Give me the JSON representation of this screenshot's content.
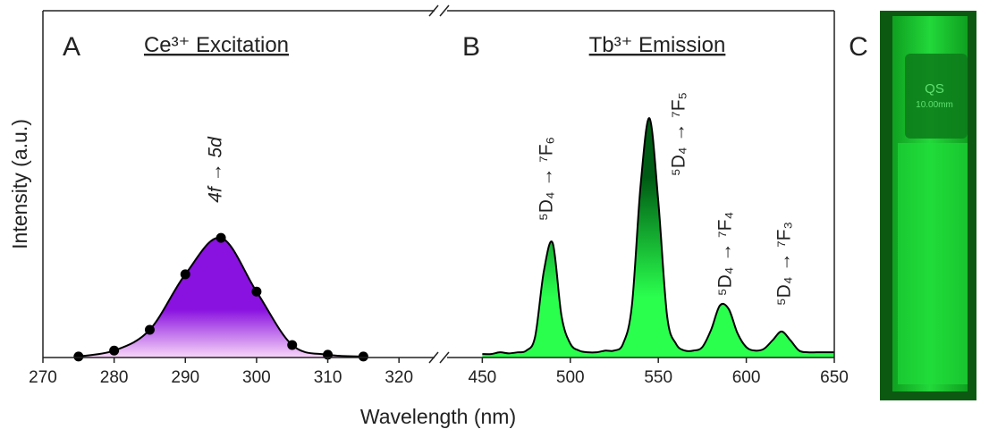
{
  "chart_data": [
    {
      "type": "line",
      "panel": "A",
      "title": "Ce³⁺ Excitation",
      "annotation": "4f → 5d",
      "x_label": "Wavelength (nm)",
      "y_label": "Intensity (a.u.)",
      "x": [
        275,
        280,
        285,
        290,
        295,
        300,
        305,
        310,
        315
      ],
      "values": [
        0.003,
        0.02,
        0.08,
        0.24,
        0.345,
        0.19,
        0.036,
        0.008,
        0.003
      ],
      "markers": true,
      "color": "#000000",
      "fill": [
        "#8a12e0",
        "#f8d6f8"
      ],
      "xlim": [
        270,
        325
      ],
      "xticks": [
        270,
        280,
        290,
        300,
        310,
        320
      ],
      "ylim": [
        0,
        1
      ]
    },
    {
      "type": "area",
      "panel": "B",
      "title": "Tb³⁺ Emission",
      "annotations": [
        "⁵D₄ → ⁷F₆",
        "⁵D₄ → ⁷F₅",
        "⁵D₄ → ⁷F₄",
        "⁵D₄ → ⁷F₃"
      ],
      "x": [
        450,
        455,
        460,
        465,
        470,
        475,
        480,
        485,
        490,
        495,
        500,
        505,
        510,
        515,
        520,
        525,
        530,
        535,
        540,
        545,
        550,
        555,
        560,
        565,
        570,
        575,
        580,
        585,
        590,
        595,
        600,
        605,
        610,
        615,
        620,
        625,
        630,
        635,
        640,
        645,
        650
      ],
      "values": [
        0.01,
        0.01,
        0.015,
        0.012,
        0.015,
        0.02,
        0.06,
        0.25,
        0.33,
        0.12,
        0.04,
        0.02,
        0.015,
        0.015,
        0.02,
        0.02,
        0.04,
        0.15,
        0.5,
        0.69,
        0.45,
        0.12,
        0.04,
        0.02,
        0.02,
        0.03,
        0.08,
        0.15,
        0.14,
        0.07,
        0.03,
        0.02,
        0.025,
        0.05,
        0.075,
        0.05,
        0.02,
        0.015,
        0.015,
        0.015,
        0.015
      ],
      "markers": false,
      "color": "#000000",
      "fill": [
        "#005c14",
        "#2aff4e"
      ],
      "xlim": [
        430,
        650
      ],
      "xticks": [
        450,
        500,
        550,
        600,
        650
      ],
      "ylim": [
        0,
        1
      ]
    }
  ],
  "photo": {
    "label": "C",
    "texts": [
      "QS",
      "10.00mm"
    ]
  }
}
